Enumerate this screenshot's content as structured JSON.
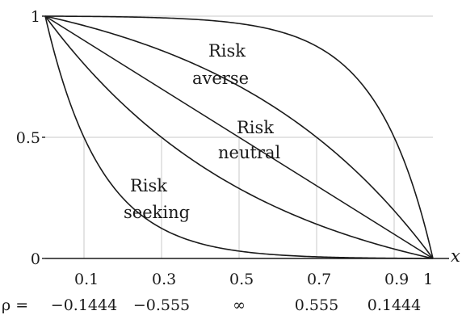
{
  "chart_data": {
    "type": "line",
    "xlabel": "x",
    "ylabel": "",
    "xlim": [
      0,
      1
    ],
    "ylim": [
      0,
      1
    ],
    "grid": true,
    "x_tick_labels": [
      "0.1",
      "0.3",
      "0.5",
      "0.7",
      "0.9",
      "1"
    ],
    "x_tick_values": [
      0.1,
      0.3,
      0.5,
      0.7,
      0.9,
      1.0
    ],
    "y_tick_labels": [
      "0",
      "0.5",
      "1"
    ],
    "y_tick_values": [
      0,
      0.5,
      1
    ],
    "rho_prefix": "ρ =",
    "rho_labels": [
      "−0.1444",
      "−0.555",
      "∞",
      "0.555",
      "0.1444"
    ],
    "rho_values": [
      -0.1444,
      -0.555,
      null,
      0.555,
      0.1444
    ],
    "series": [
      {
        "rho": 0.1444
      },
      {
        "rho": 0.555
      },
      {
        "rho": null
      },
      {
        "rho": -0.555
      },
      {
        "rho": -0.1444
      }
    ],
    "annotations": [
      {
        "line1": "Risk",
        "line2": "averse"
      },
      {
        "line1": "Risk",
        "line2": "neutral"
      },
      {
        "line1": "Risk",
        "line2": "seeking"
      }
    ]
  }
}
